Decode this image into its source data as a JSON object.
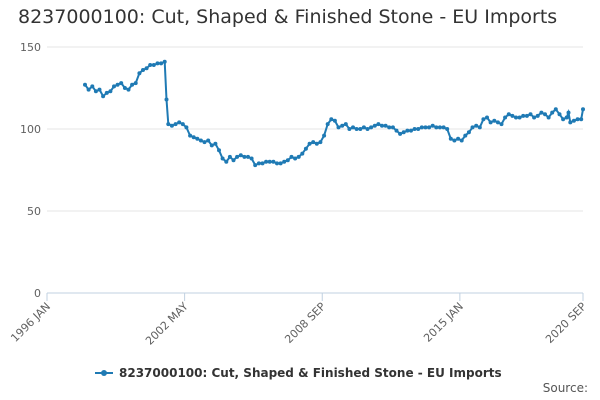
{
  "title": "8237000100: Cut, Shaped & Finished Stone - EU Imports",
  "source_label": "Source:",
  "colors": {
    "series": "#1f7ab4",
    "grid": "#e6e6e6",
    "axis": "#c0d0e0"
  },
  "chart_data": {
    "type": "line",
    "title": "8237000100: Cut, Shaped & Finished Stone - EU Imports",
    "xlabel": "",
    "ylabel": "",
    "x_ticks": [
      "1996 JAN",
      "2002 MAY",
      "2008 SEP",
      "2015 JAN",
      "2020 SEP"
    ],
    "y_ticks": [
      0,
      50,
      100,
      150
    ],
    "ylim": [
      0,
      150
    ],
    "xlim": [
      "1996-01",
      "2020-09"
    ],
    "grid": "horizontal",
    "legend_position": "bottom",
    "series": [
      {
        "name": "8237000100: Cut, Shaped & Finished Stone - EU Imports",
        "points": [
          [
            "1997-10",
            127
          ],
          [
            "1997-12",
            124
          ],
          [
            "1998-02",
            126
          ],
          [
            "1998-04",
            123
          ],
          [
            "1998-06",
            124
          ],
          [
            "1998-08",
            120
          ],
          [
            "1998-10",
            122
          ],
          [
            "1998-12",
            123
          ],
          [
            "1999-02",
            126
          ],
          [
            "1999-04",
            127
          ],
          [
            "1999-06",
            128
          ],
          [
            "1999-08",
            125
          ],
          [
            "1999-10",
            124
          ],
          [
            "1999-12",
            127
          ],
          [
            "2000-02",
            128
          ],
          [
            "2000-04",
            134
          ],
          [
            "2000-06",
            136
          ],
          [
            "2000-08",
            137
          ],
          [
            "2000-10",
            139
          ],
          [
            "2000-12",
            139
          ],
          [
            "2001-02",
            140
          ],
          [
            "2001-04",
            140
          ],
          [
            "2001-06",
            141
          ],
          [
            "2001-07",
            118
          ],
          [
            "2001-08",
            103
          ],
          [
            "2001-10",
            102
          ],
          [
            "2001-12",
            103
          ],
          [
            "2002-02",
            104
          ],
          [
            "2002-04",
            103
          ],
          [
            "2002-06",
            101
          ],
          [
            "2002-08",
            96
          ],
          [
            "2002-10",
            95
          ],
          [
            "2002-12",
            94
          ],
          [
            "2003-02",
            93
          ],
          [
            "2003-04",
            92
          ],
          [
            "2003-06",
            93
          ],
          [
            "2003-08",
            90
          ],
          [
            "2003-10",
            91
          ],
          [
            "2003-12",
            87
          ],
          [
            "2004-02",
            82
          ],
          [
            "2004-04",
            80
          ],
          [
            "2004-06",
            83
          ],
          [
            "2004-08",
            81
          ],
          [
            "2004-10",
            83
          ],
          [
            "2004-12",
            84
          ],
          [
            "2005-02",
            83
          ],
          [
            "2005-04",
            83
          ],
          [
            "2005-06",
            82
          ],
          [
            "2005-08",
            78
          ],
          [
            "2005-10",
            79
          ],
          [
            "2005-12",
            79
          ],
          [
            "2006-02",
            80
          ],
          [
            "2006-04",
            80
          ],
          [
            "2006-06",
            80
          ],
          [
            "2006-08",
            79
          ],
          [
            "2006-10",
            79
          ],
          [
            "2006-12",
            80
          ],
          [
            "2007-02",
            81
          ],
          [
            "2007-04",
            83
          ],
          [
            "2007-06",
            82
          ],
          [
            "2007-08",
            83
          ],
          [
            "2007-10",
            85
          ],
          [
            "2007-12",
            88
          ],
          [
            "2008-02",
            91
          ],
          [
            "2008-04",
            92
          ],
          [
            "2008-06",
            91
          ],
          [
            "2008-08",
            92
          ],
          [
            "2008-10",
            96
          ],
          [
            "2008-12",
            103
          ],
          [
            "2009-02",
            106
          ],
          [
            "2009-04",
            105
          ],
          [
            "2009-06",
            101
          ],
          [
            "2009-08",
            102
          ],
          [
            "2009-10",
            103
          ],
          [
            "2009-12",
            100
          ],
          [
            "2010-02",
            101
          ],
          [
            "2010-04",
            100
          ],
          [
            "2010-06",
            100
          ],
          [
            "2010-08",
            101
          ],
          [
            "2010-10",
            100
          ],
          [
            "2010-12",
            101
          ],
          [
            "2011-02",
            102
          ],
          [
            "2011-04",
            103
          ],
          [
            "2011-06",
            102
          ],
          [
            "2011-08",
            102
          ],
          [
            "2011-10",
            101
          ],
          [
            "2011-12",
            101
          ],
          [
            "2012-02",
            99
          ],
          [
            "2012-04",
            97
          ],
          [
            "2012-06",
            98
          ],
          [
            "2012-08",
            99
          ],
          [
            "2012-10",
            99
          ],
          [
            "2012-12",
            100
          ],
          [
            "2013-02",
            100
          ],
          [
            "2013-04",
            101
          ],
          [
            "2013-06",
            101
          ],
          [
            "2013-08",
            101
          ],
          [
            "2013-10",
            102
          ],
          [
            "2013-12",
            101
          ],
          [
            "2014-02",
            101
          ],
          [
            "2014-04",
            101
          ],
          [
            "2014-06",
            100
          ],
          [
            "2014-08",
            94
          ],
          [
            "2014-10",
            93
          ],
          [
            "2014-12",
            94
          ],
          [
            "2015-02",
            93
          ],
          [
            "2015-04",
            96
          ],
          [
            "2015-06",
            98
          ],
          [
            "2015-08",
            101
          ],
          [
            "2015-10",
            102
          ],
          [
            "2015-12",
            101
          ],
          [
            "2016-02",
            106
          ],
          [
            "2016-04",
            107
          ],
          [
            "2016-06",
            104
          ],
          [
            "2016-08",
            105
          ],
          [
            "2016-10",
            104
          ],
          [
            "2016-12",
            103
          ],
          [
            "2017-02",
            107
          ],
          [
            "2017-04",
            109
          ],
          [
            "2017-06",
            108
          ],
          [
            "2017-08",
            107
          ],
          [
            "2017-10",
            107
          ],
          [
            "2017-12",
            108
          ],
          [
            "2018-02",
            108
          ],
          [
            "2018-04",
            109
          ],
          [
            "2018-06",
            107
          ],
          [
            "2018-08",
            108
          ],
          [
            "2018-10",
            110
          ],
          [
            "2018-12",
            109
          ],
          [
            "2019-02",
            107
          ],
          [
            "2019-04",
            110
          ],
          [
            "2019-06",
            112
          ],
          [
            "2019-08",
            109
          ],
          [
            "2019-10",
            106
          ],
          [
            "2019-12",
            107
          ],
          [
            "2020-01",
            110
          ],
          [
            "2020-02",
            104
          ],
          [
            "2020-04",
            105
          ],
          [
            "2020-06",
            106
          ],
          [
            "2020-08",
            106
          ],
          [
            "2020-09",
            112
          ]
        ]
      }
    ]
  }
}
